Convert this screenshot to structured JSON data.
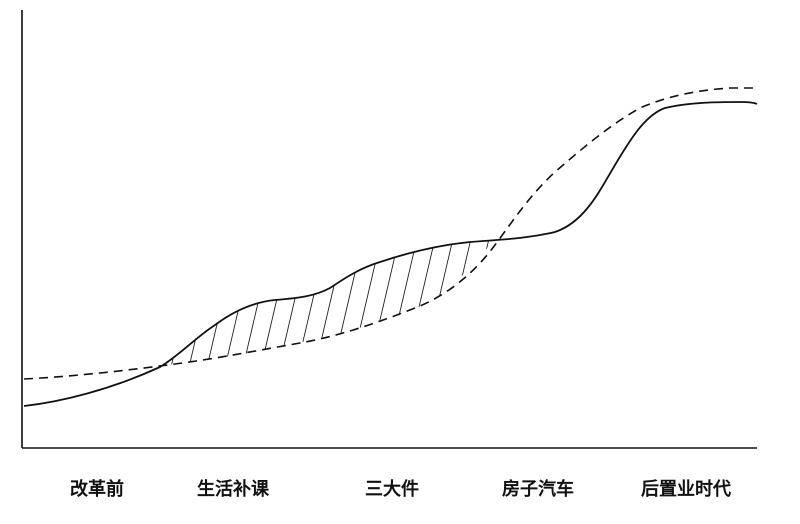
{
  "stages": [
    {
      "label": "改革前"
    },
    {
      "label": "生活补课"
    },
    {
      "label": "三大件"
    },
    {
      "label": "房子汽车"
    },
    {
      "label": "后置业时代"
    }
  ],
  "legend": []
}
